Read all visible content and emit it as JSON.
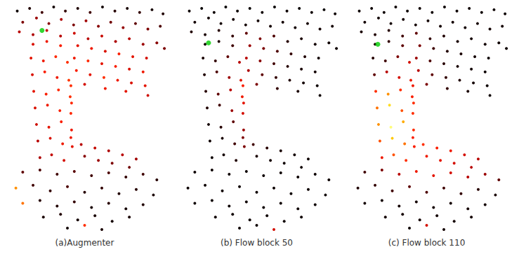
{
  "chart_data": [
    {
      "type": "scatter",
      "title": "(a)Augmenter",
      "marker": "circle",
      "tick_labels": false,
      "xlim": [
        0,
        240
      ],
      "ylim": [
        0,
        330
      ],
      "x": [
        22,
        40,
        58,
        75,
        92,
        110,
        128,
        146,
        164,
        182,
        200,
        218,
        234,
        30,
        50,
        68,
        86,
        104,
        122,
        140,
        158,
        176,
        194,
        212,
        230,
        25,
        45,
        65,
        85,
        105,
        125,
        145,
        165,
        185,
        205,
        225,
        236,
        110,
        130,
        150,
        170,
        190,
        210,
        105,
        125,
        145,
        165,
        185,
        205,
        108,
        128,
        148,
        168,
        188,
        208,
        120,
        150,
        180,
        212,
        45,
        65,
        85,
        42,
        60,
        78,
        95,
        44,
        62,
        80,
        97,
        46,
        64,
        82,
        99,
        48,
        66,
        84,
        100,
        50,
        68,
        86,
        101,
        52,
        70,
        88,
        102,
        55,
        72,
        90,
        100,
        101,
        100,
        115,
        135,
        155,
        175,
        195,
        120,
        140,
        160,
        185,
        30,
        55,
        80,
        105,
        130,
        155,
        180,
        205,
        225,
        20,
        45,
        70,
        95,
        120,
        145,
        170,
        195,
        220,
        30,
        55,
        80,
        105,
        130,
        155,
        180,
        205,
        60,
        85,
        110,
        135,
        160,
        185,
        95,
        120,
        145
      ],
      "y": [
        12,
        8,
        14,
        6,
        12,
        8,
        14,
        6,
        12,
        8,
        14,
        10,
        16,
        28,
        22,
        30,
        24,
        32,
        26,
        34,
        28,
        36,
        30,
        38,
        34,
        42,
        46,
        40,
        48,
        44,
        52,
        48,
        56,
        52,
        60,
        58,
        66,
        62,
        66,
        70,
        74,
        78,
        80,
        80,
        84,
        88,
        92,
        96,
        100,
        98,
        104,
        108,
        112,
        116,
        120,
        118,
        124,
        128,
        134,
        60,
        56,
        62,
        80,
        84,
        78,
        86,
        104,
        100,
        108,
        112,
        128,
        132,
        126,
        136,
        152,
        148,
        156,
        160,
        176,
        180,
        172,
        184,
        200,
        196,
        204,
        208,
        224,
        220,
        228,
        120,
        145,
        195,
        205,
        210,
        214,
        220,
        226,
        222,
        228,
        232,
        238,
        245,
        242,
        248,
        244,
        250,
        246,
        252,
        248,
        256,
        268,
        264,
        272,
        266,
        274,
        268,
        276,
        270,
        278,
        290,
        286,
        294,
        288,
        296,
        290,
        298,
        292,
        310,
        306,
        314,
        308,
        316,
        310,
        326,
        322,
        328
      ],
      "values": [
        0.02,
        0.05,
        0.1,
        0.03,
        0.08,
        0.05,
        0.1,
        0.03,
        0.06,
        0.04,
        0.08,
        0.03,
        0.05,
        0.2,
        0.25,
        0.22,
        0.28,
        0.2,
        0.26,
        0.22,
        0.18,
        0.24,
        0.15,
        0.2,
        0.12,
        0.3,
        0.28,
        0.32,
        0.3,
        0.34,
        0.3,
        0.33,
        0.28,
        0.3,
        0.25,
        0.22,
        0.2,
        0.38,
        0.4,
        0.36,
        0.42,
        0.38,
        0.35,
        0.4,
        0.44,
        0.38,
        0.42,
        0.36,
        0.4,
        0.42,
        0.38,
        0.45,
        0.4,
        0.36,
        0.38,
        0.35,
        0.4,
        0.38,
        0.34,
        0.36,
        0.4,
        0.42,
        0.38,
        0.4,
        0.44,
        0.45,
        0.36,
        0.42,
        0.4,
        0.46,
        0.38,
        0.42,
        0.44,
        0.45,
        0.36,
        0.4,
        0.42,
        0.44,
        0.34,
        0.38,
        0.42,
        0.4,
        0.3,
        0.36,
        0.4,
        0.38,
        0.28,
        0.32,
        0.35,
        0.45,
        0.44,
        0.4,
        0.3,
        0.32,
        0.28,
        0.3,
        0.26,
        0.22,
        0.25,
        0.2,
        0.18,
        0.15,
        0.12,
        0.1,
        0.14,
        0.1,
        0.12,
        0.08,
        0.1,
        0.06,
        0.6,
        0.1,
        0.08,
        0.12,
        0.06,
        0.08,
        0.05,
        0.06,
        0.04,
        0.55,
        0.06,
        0.05,
        0.08,
        0.04,
        0.06,
        0.03,
        0.05,
        0.04,
        0.05,
        0.03,
        0.04,
        0.03,
        0.04,
        0.03,
        0.45,
        0.04
      ],
      "highlight": {
        "point": [
          58,
          40
        ],
        "color": "#00cc00"
      }
    },
    {
      "type": "scatter",
      "title": "(b) Flow block 50",
      "marker": "circle",
      "tick_labels": false,
      "xlim": [
        0,
        240
      ],
      "ylim": [
        0,
        330
      ],
      "x": [
        22,
        40,
        58,
        75,
        92,
        110,
        128,
        146,
        164,
        182,
        200,
        218,
        234,
        30,
        50,
        68,
        86,
        104,
        122,
        140,
        158,
        176,
        194,
        212,
        230,
        25,
        45,
        65,
        85,
        105,
        125,
        145,
        165,
        185,
        205,
        225,
        236,
        110,
        130,
        150,
        170,
        190,
        210,
        105,
        125,
        145,
        165,
        185,
        205,
        108,
        128,
        148,
        168,
        188,
        208,
        120,
        150,
        180,
        212,
        45,
        65,
        85,
        42,
        60,
        78,
        95,
        44,
        62,
        80,
        97,
        46,
        64,
        82,
        99,
        48,
        66,
        84,
        100,
        50,
        68,
        86,
        101,
        52,
        70,
        88,
        102,
        55,
        72,
        90,
        100,
        101,
        100,
        115,
        135,
        155,
        175,
        195,
        120,
        140,
        160,
        185,
        30,
        55,
        80,
        105,
        130,
        155,
        180,
        205,
        225,
        20,
        45,
        70,
        95,
        120,
        145,
        170,
        195,
        220,
        30,
        55,
        80,
        105,
        130,
        155,
        180,
        205,
        60,
        85,
        110,
        135,
        160,
        185,
        95,
        120,
        145
      ],
      "y": [
        12,
        8,
        14,
        6,
        12,
        8,
        14,
        6,
        12,
        8,
        14,
        10,
        16,
        28,
        22,
        30,
        24,
        32,
        26,
        34,
        28,
        36,
        30,
        38,
        34,
        42,
        46,
        40,
        48,
        44,
        52,
        48,
        56,
        52,
        60,
        58,
        66,
        62,
        66,
        70,
        74,
        78,
        80,
        80,
        84,
        88,
        92,
        96,
        100,
        98,
        104,
        108,
        112,
        116,
        120,
        118,
        124,
        128,
        134,
        60,
        56,
        62,
        80,
        84,
        78,
        86,
        104,
        100,
        108,
        112,
        128,
        132,
        126,
        136,
        152,
        148,
        156,
        160,
        176,
        180,
        172,
        184,
        200,
        196,
        204,
        208,
        224,
        220,
        228,
        120,
        145,
        195,
        205,
        210,
        214,
        220,
        226,
        222,
        228,
        232,
        238,
        245,
        242,
        248,
        244,
        250,
        246,
        252,
        248,
        256,
        268,
        264,
        272,
        266,
        274,
        268,
        276,
        270,
        278,
        290,
        286,
        294,
        288,
        296,
        290,
        298,
        292,
        310,
        306,
        314,
        308,
        316,
        310,
        326,
        322,
        328
      ],
      "values": [
        0.02,
        0.01,
        0.02,
        0.01,
        0.02,
        0.01,
        0.02,
        0.01,
        0.02,
        0.01,
        0.02,
        0.01,
        0.02,
        0.03,
        0.03,
        0.03,
        0.03,
        0.03,
        0.03,
        0.03,
        0.03,
        0.03,
        0.03,
        0.03,
        0.03,
        0.05,
        0.04,
        0.06,
        0.08,
        0.15,
        0.2,
        0.12,
        0.06,
        0.04,
        0.03,
        0.02,
        0.02,
        0.25,
        0.2,
        0.12,
        0.08,
        0.05,
        0.03,
        0.3,
        0.22,
        0.1,
        0.06,
        0.04,
        0.03,
        0.28,
        0.15,
        0.08,
        0.05,
        0.03,
        0.02,
        0.2,
        0.08,
        0.04,
        0.02,
        0.03,
        0.05,
        0.1,
        0.04,
        0.08,
        0.15,
        0.3,
        0.05,
        0.12,
        0.25,
        0.38,
        0.06,
        0.15,
        0.3,
        0.4,
        0.05,
        0.1,
        0.25,
        0.35,
        0.03,
        0.06,
        0.15,
        0.25,
        0.02,
        0.04,
        0.1,
        0.2,
        0.02,
        0.03,
        0.05,
        0.42,
        0.38,
        0.2,
        0.1,
        0.06,
        0.04,
        0.03,
        0.02,
        0.04,
        0.03,
        0.02,
        0.02,
        0.02,
        0.02,
        0.02,
        0.02,
        0.02,
        0.02,
        0.02,
        0.02,
        0.02,
        0.02,
        0.02,
        0.02,
        0.02,
        0.02,
        0.02,
        0.02,
        0.02,
        0.02,
        0.02,
        0.02,
        0.02,
        0.02,
        0.02,
        0.02,
        0.02,
        0.02,
        0.02,
        0.02,
        0.02,
        0.02,
        0.02,
        0.02,
        0.02,
        0.02,
        0.35
      ],
      "highlight": {
        "point": [
          50,
          58
        ],
        "color": "#00cc00"
      }
    },
    {
      "type": "scatter",
      "title": "(c) Flow block 110",
      "marker": "circle",
      "tick_labels": false,
      "xlim": [
        0,
        240
      ],
      "ylim": [
        0,
        330
      ],
      "x": [
        22,
        40,
        58,
        75,
        92,
        110,
        128,
        146,
        164,
        182,
        200,
        218,
        234,
        30,
        50,
        68,
        86,
        104,
        122,
        140,
        158,
        176,
        194,
        212,
        230,
        25,
        45,
        65,
        85,
        105,
        125,
        145,
        165,
        185,
        205,
        225,
        236,
        110,
        130,
        150,
        170,
        190,
        210,
        105,
        125,
        145,
        165,
        185,
        205,
        108,
        128,
        148,
        168,
        188,
        208,
        120,
        150,
        180,
        212,
        45,
        65,
        85,
        42,
        60,
        78,
        95,
        44,
        62,
        80,
        97,
        46,
        64,
        82,
        99,
        48,
        66,
        84,
        100,
        50,
        68,
        86,
        101,
        52,
        70,
        88,
        102,
        55,
        72,
        90,
        100,
        101,
        100,
        115,
        135,
        155,
        175,
        195,
        120,
        140,
        160,
        185,
        30,
        55,
        80,
        105,
        130,
        155,
        180,
        205,
        225,
        20,
        45,
        70,
        95,
        120,
        145,
        170,
        195,
        220,
        30,
        55,
        80,
        105,
        130,
        155,
        180,
        205,
        60,
        85,
        110,
        135,
        160,
        185,
        95,
        120,
        145
      ],
      "y": [
        12,
        8,
        14,
        6,
        12,
        8,
        14,
        6,
        12,
        8,
        14,
        10,
        16,
        28,
        22,
        30,
        24,
        32,
        26,
        34,
        28,
        36,
        30,
        38,
        34,
        42,
        46,
        40,
        48,
        44,
        52,
        48,
        56,
        52,
        60,
        58,
        66,
        62,
        66,
        70,
        74,
        78,
        80,
        80,
        84,
        88,
        92,
        96,
        100,
        98,
        104,
        108,
        112,
        116,
        120,
        118,
        124,
        128,
        134,
        60,
        56,
        62,
        80,
        84,
        78,
        86,
        104,
        100,
        108,
        112,
        128,
        132,
        126,
        136,
        152,
        148,
        156,
        160,
        176,
        180,
        172,
        184,
        200,
        196,
        204,
        208,
        224,
        220,
        228,
        120,
        145,
        195,
        205,
        210,
        214,
        220,
        226,
        222,
        228,
        232,
        238,
        245,
        242,
        248,
        244,
        250,
        246,
        252,
        248,
        256,
        268,
        264,
        272,
        266,
        274,
        268,
        276,
        270,
        278,
        290,
        286,
        294,
        288,
        296,
        290,
        298,
        292,
        310,
        306,
        314,
        308,
        316,
        310,
        326,
        322,
        328
      ],
      "values": [
        0.02,
        0.02,
        0.02,
        0.02,
        0.02,
        0.02,
        0.02,
        0.02,
        0.02,
        0.02,
        0.02,
        0.02,
        0.02,
        0.03,
        0.03,
        0.03,
        0.03,
        0.03,
        0.03,
        0.03,
        0.03,
        0.03,
        0.03,
        0.03,
        0.03,
        0.04,
        0.05,
        0.06,
        0.1,
        0.15,
        0.08,
        0.05,
        0.04,
        0.03,
        0.03,
        0.02,
        0.02,
        0.2,
        0.1,
        0.05,
        0.04,
        0.03,
        0.02,
        0.25,
        0.12,
        0.06,
        0.04,
        0.03,
        0.02,
        0.3,
        0.15,
        0.08,
        0.05,
        0.03,
        0.02,
        0.2,
        0.08,
        0.04,
        0.02,
        0.05,
        0.08,
        0.15,
        0.06,
        0.1,
        0.2,
        0.35,
        0.15,
        0.3,
        0.35,
        0.4,
        0.45,
        0.6,
        0.45,
        0.42,
        0.55,
        0.75,
        0.5,
        0.45,
        0.6,
        0.85,
        0.65,
        0.45,
        0.5,
        0.7,
        0.55,
        0.42,
        0.4,
        0.5,
        0.45,
        0.4,
        0.45,
        0.42,
        0.45,
        0.42,
        0.4,
        0.35,
        0.3,
        0.4,
        0.38,
        0.35,
        0.3,
        0.1,
        0.2,
        0.3,
        0.4,
        0.38,
        0.35,
        0.3,
        0.25,
        0.15,
        0.05,
        0.08,
        0.1,
        0.15,
        0.12,
        0.1,
        0.08,
        0.06,
        0.04,
        0.03,
        0.03,
        0.03,
        0.03,
        0.03,
        0.03,
        0.03,
        0.03,
        0.03,
        0.03,
        0.03,
        0.03,
        0.03,
        0.03,
        0.02,
        0.35,
        0.03
      ],
      "highlight": {
        "point": [
          49,
          60
        ],
        "color": "#00cc00"
      }
    }
  ],
  "colorbar": {
    "range": [
      0,
      1
    ]
  }
}
